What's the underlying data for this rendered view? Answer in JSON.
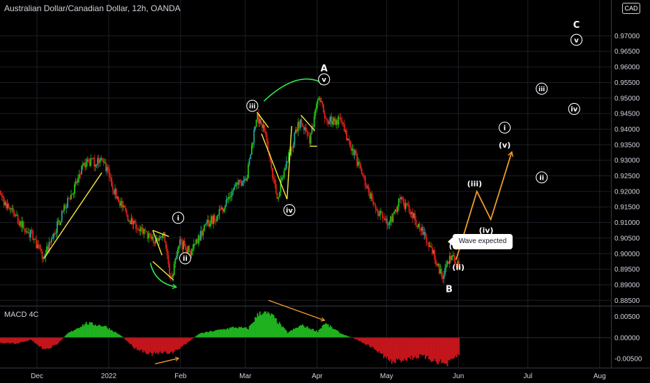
{
  "header": {
    "symbol_title": "Australian Dollar/Canadian Dollar, 12h, OANDA",
    "currency_badge": "CAD"
  },
  "indicator": {
    "title": "MACD 4C"
  },
  "callout": {
    "text": "Wave expected"
  },
  "colors": {
    "up": "#26a69a",
    "up_bright": "#22c90f",
    "down": "#e0221a",
    "yellow": "#ffeb3b",
    "green_arrow": "#2ee84a",
    "orange": "#f39c2a",
    "macd_pos": "#1fb21f",
    "macd_neg": "#c4151c",
    "grid": "#1c1f27"
  },
  "chart_data": [
    {
      "type": "candlestick",
      "title": "Australian Dollar/Canadian Dollar, 12h, OANDA",
      "ylim": [
        0.8835,
        0.9815
      ],
      "y_ticks": [
        0.885,
        0.89,
        0.895,
        0.9,
        0.905,
        0.91,
        0.915,
        0.92,
        0.925,
        0.93,
        0.935,
        0.94,
        0.945,
        0.95,
        0.955,
        0.96,
        0.965,
        0.97
      ],
      "y_tick_labels": [
        "0.88500",
        "0.89000",
        "0.89500",
        "0.90000",
        "0.90500",
        "0.91000",
        "0.91500",
        "0.92000",
        "0.92500",
        "0.93000",
        "0.93500",
        "0.94000",
        "0.94500",
        "0.95000",
        "0.95500",
        "0.96000",
        "0.96500",
        "0.97000"
      ],
      "x_labels": [
        "Dec",
        "2022",
        "Feb",
        "Mar",
        "Apr",
        "May",
        "Jun",
        "Jul",
        "Aug"
      ],
      "x_label_dates": [
        "2021-12-01",
        "2022-01-01",
        "2022-02-01",
        "2022-03-01",
        "2022-04-01",
        "2022-05-01",
        "2022-06-01",
        "2022-07-01",
        "2022-08-01"
      ],
      "price_path": [
        {
          "date": "2021-11-12",
          "price": 0.926
        },
        {
          "date": "2021-11-17",
          "price": 0.917
        },
        {
          "date": "2021-11-24",
          "price": 0.91
        },
        {
          "date": "2021-11-29",
          "price": 0.906
        },
        {
          "date": "2021-12-04",
          "price": 0.8985
        },
        {
          "date": "2021-12-10",
          "price": 0.909
        },
        {
          "date": "2021-12-16",
          "price": 0.919
        },
        {
          "date": "2021-12-22",
          "price": 0.929
        },
        {
          "date": "2021-12-30",
          "price": 0.93
        },
        {
          "date": "2022-01-04",
          "price": 0.9195
        },
        {
          "date": "2022-01-10",
          "price": 0.911
        },
        {
          "date": "2022-01-16",
          "price": 0.907
        },
        {
          "date": "2022-01-21",
          "price": 0.904
        },
        {
          "date": "2022-01-25",
          "price": 0.907
        },
        {
          "date": "2022-01-28",
          "price": 0.8915
        },
        {
          "date": "2022-02-01",
          "price": 0.9035
        },
        {
          "date": "2022-02-06",
          "price": 0.9005
        },
        {
          "date": "2022-02-11",
          "price": 0.908
        },
        {
          "date": "2022-02-18",
          "price": 0.913
        },
        {
          "date": "2022-02-24",
          "price": 0.9205
        },
        {
          "date": "2022-03-02",
          "price": 0.925
        },
        {
          "date": "2022-03-06",
          "price": 0.944
        },
        {
          "date": "2022-03-09",
          "price": 0.941
        },
        {
          "date": "2022-03-15",
          "price": 0.918
        },
        {
          "date": "2022-03-20",
          "price": 0.932
        },
        {
          "date": "2022-03-25",
          "price": 0.943
        },
        {
          "date": "2022-03-29",
          "price": 0.9365
        },
        {
          "date": "2022-04-02",
          "price": 0.951
        },
        {
          "date": "2022-04-05",
          "price": 0.943
        },
        {
          "date": "2022-04-11",
          "price": 0.943
        },
        {
          "date": "2022-04-16",
          "price": 0.9345
        },
        {
          "date": "2022-04-21",
          "price": 0.925
        },
        {
          "date": "2022-04-26",
          "price": 0.915
        },
        {
          "date": "2022-05-02",
          "price": 0.909
        },
        {
          "date": "2022-05-07",
          "price": 0.9175
        },
        {
          "date": "2022-05-12",
          "price": 0.913
        },
        {
          "date": "2022-05-17",
          "price": 0.907
        },
        {
          "date": "2022-05-22",
          "price": 0.899
        },
        {
          "date": "2022-05-25",
          "price": 0.8925
        },
        {
          "date": "2022-05-29",
          "price": 0.8985
        },
        {
          "date": "2022-06-01",
          "price": 0.897
        }
      ],
      "projection_path": [
        {
          "label": "(ii)",
          "date": "2022-05-31",
          "price": 0.898
        },
        {
          "label": "(iii)",
          "date": "2022-06-09",
          "price": 0.92
        },
        {
          "label": "(iv)",
          "date": "2022-06-15",
          "price": 0.911
        },
        {
          "label": "(v)",
          "date": "2022-06-24",
          "price": 0.9325
        }
      ],
      "wave_labels": [
        {
          "text": "i",
          "style": "circled",
          "date": "2022-01-31",
          "price": 0.9115
        },
        {
          "text": "ii",
          "style": "circled",
          "date": "2022-02-03",
          "price": 0.8985
        },
        {
          "text": "iii",
          "style": "circled",
          "date": "2022-03-04",
          "price": 0.9475
        },
        {
          "text": "iv",
          "style": "circled",
          "date": "2022-03-20",
          "price": 0.914
        },
        {
          "text": "v",
          "style": "circled",
          "date": "2022-04-04",
          "price": 0.956
        },
        {
          "text": "A",
          "style": "plain",
          "date": "2022-04-04",
          "price": 0.9595
        },
        {
          "text": "(i)",
          "style": "plain",
          "date": "2022-05-30",
          "price": 0.9025
        },
        {
          "text": "(ii)",
          "style": "plain",
          "date": "2022-06-01",
          "price": 0.8957
        },
        {
          "text": "B",
          "style": "plain",
          "date": "2022-05-28",
          "price": 0.8885
        },
        {
          "text": "(iii)",
          "style": "plain",
          "date": "2022-06-08",
          "price": 0.9225
        },
        {
          "text": "(iv)",
          "style": "plain",
          "date": "2022-06-13",
          "price": 0.9075
        },
        {
          "text": "(v)",
          "style": "plain",
          "date": "2022-06-21",
          "price": 0.935
        },
        {
          "text": "i",
          "style": "circled",
          "date": "2022-06-21",
          "price": 0.9405
        },
        {
          "text": "ii",
          "style": "circled",
          "date": "2022-07-07",
          "price": 0.9245
        },
        {
          "text": "iii",
          "style": "circled",
          "date": "2022-07-07",
          "price": 0.953
        },
        {
          "text": "iv",
          "style": "circled",
          "date": "2022-07-21",
          "price": 0.9465
        },
        {
          "text": "v",
          "style": "circled",
          "date": "2022-07-22",
          "price": 0.9687
        },
        {
          "text": "C",
          "style": "plain",
          "date": "2022-07-22",
          "price": 0.9735
        }
      ],
      "yellow_lines": [
        [
          {
            "date": "2021-12-04",
            "price": 0.8985
          },
          {
            "date": "2021-12-29",
            "price": 0.926
          }
        ],
        [
          {
            "date": "2022-01-20",
            "price": 0.9075
          },
          {
            "date": "2022-01-27",
            "price": 0.9055
          }
        ],
        [
          {
            "date": "2022-01-20",
            "price": 0.9075
          },
          {
            "date": "2022-01-24",
            "price": 0.8995
          }
        ],
        [
          {
            "date": "2022-01-20",
            "price": 0.8975
          },
          {
            "date": "2022-01-29",
            "price": 0.8915
          }
        ],
        [
          {
            "date": "2022-03-06",
            "price": 0.9455
          },
          {
            "date": "2022-03-11",
            "price": 0.9405
          }
        ],
        [
          {
            "date": "2022-03-08",
            "price": 0.9385
          },
          {
            "date": "2022-03-19",
            "price": 0.9175
          }
        ],
        [
          {
            "date": "2022-03-19",
            "price": 0.9175
          },
          {
            "date": "2022-03-21",
            "price": 0.941
          }
        ],
        [
          {
            "date": "2022-03-25",
            "price": 0.9445
          },
          {
            "date": "2022-03-31",
            "price": 0.9395
          }
        ],
        [
          {
            "date": "2022-03-29",
            "price": 0.9345
          },
          {
            "date": "2022-04-01",
            "price": 0.9345
          }
        ]
      ],
      "green_arrows": [
        {
          "from": {
            "date": "2022-01-19",
            "price": 0.897
          },
          "ctrl": {
            "date": "2022-01-21",
            "price": 0.8905
          },
          "to": {
            "date": "2022-01-30",
            "price": 0.8893
          }
        },
        {
          "from": {
            "date": "2022-03-09",
            "price": 0.949
          },
          "ctrl": {
            "date": "2022-03-24",
            "price": 0.9595
          },
          "to": {
            "date": "2022-04-04",
            "price": 0.9545
          }
        }
      ]
    },
    {
      "type": "bar",
      "title": "MACD 4C",
      "ylim": [
        -0.0071,
        0.0072
      ],
      "y_ticks": [
        0.005,
        0.0,
        -0.005
      ],
      "y_tick_labels": [
        "0.00500",
        "0.00000",
        "-0.00500"
      ],
      "histogram_path": [
        {
          "date": "2021-11-12",
          "value": -0.0012
        },
        {
          "date": "2021-11-22",
          "value": -0.0015
        },
        {
          "date": "2021-11-28",
          "value": -0.0005
        },
        {
          "date": "2021-12-04",
          "value": -0.003
        },
        {
          "date": "2021-12-09",
          "value": -0.0018
        },
        {
          "date": "2021-12-14",
          "value": 0.001
        },
        {
          "date": "2021-12-22",
          "value": 0.0035
        },
        {
          "date": "2021-12-30",
          "value": 0.0028
        },
        {
          "date": "2022-01-06",
          "value": 0.0005
        },
        {
          "date": "2022-01-12",
          "value": -0.0025
        },
        {
          "date": "2022-01-19",
          "value": -0.004
        },
        {
          "date": "2022-01-29",
          "value": -0.0035
        },
        {
          "date": "2022-02-03",
          "value": -0.0015
        },
        {
          "date": "2022-02-09",
          "value": 0.001
        },
        {
          "date": "2022-02-17",
          "value": 0.0018
        },
        {
          "date": "2022-02-24",
          "value": 0.0025
        },
        {
          "date": "2022-03-02",
          "value": 0.0022
        },
        {
          "date": "2022-03-07",
          "value": 0.0062
        },
        {
          "date": "2022-03-12",
          "value": 0.0055
        },
        {
          "date": "2022-03-19",
          "value": 0.0012
        },
        {
          "date": "2022-03-25",
          "value": 0.003
        },
        {
          "date": "2022-04-01",
          "value": 0.0015
        },
        {
          "date": "2022-04-04",
          "value": 0.0035
        },
        {
          "date": "2022-04-11",
          "value": 0.001
        },
        {
          "date": "2022-04-18",
          "value": -0.0005
        },
        {
          "date": "2022-04-25",
          "value": -0.0025
        },
        {
          "date": "2022-05-03",
          "value": -0.006
        },
        {
          "date": "2022-05-10",
          "value": -0.005
        },
        {
          "date": "2022-05-16",
          "value": -0.0045
        },
        {
          "date": "2022-05-21",
          "value": -0.0055
        },
        {
          "date": "2022-05-27",
          "value": -0.0065
        },
        {
          "date": "2022-06-01",
          "value": -0.004
        }
      ],
      "orange_lines": [
        [
          {
            "date": "2022-01-21",
            "value": -0.0062
          },
          {
            "date": "2022-01-31",
            "value": -0.0049
          }
        ],
        [
          {
            "date": "2022-03-11",
            "value": 0.0088
          },
          {
            "date": "2022-04-04",
            "value": 0.0041
          }
        ]
      ]
    }
  ]
}
